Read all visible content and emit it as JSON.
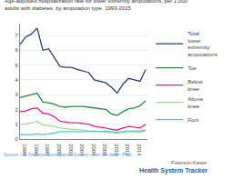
{
  "chart_data": {
    "type": "line",
    "title": "Age-adjusted hospitalization rate for lower extremity amputations, per 1,000\nadults with diabetes, by amputation type, 1993-2015",
    "x": [
      1993,
      1994,
      1995,
      1996,
      1997,
      1998,
      1999,
      2000,
      2001,
      2002,
      2003,
      2004,
      2005,
      2006,
      2007,
      2008,
      2009,
      2010,
      2011,
      2012,
      2013,
      2014,
      2015
    ],
    "series": [
      {
        "name": "Total\nlower\nextremity\namputations",
        "color": "#2d3d7c",
        "values": [
          6.4,
          6.9,
          7.1,
          7.5,
          6.0,
          6.1,
          5.5,
          4.9,
          4.85,
          4.85,
          4.7,
          4.6,
          4.5,
          4.0,
          3.9,
          3.8,
          3.5,
          3.1,
          3.7,
          4.1,
          4.0,
          3.9,
          4.7
        ]
      },
      {
        "name": "Toe",
        "color": "#2e8b4a",
        "values": [
          2.8,
          2.9,
          3.0,
          3.1,
          2.5,
          2.45,
          2.35,
          2.2,
          2.15,
          2.2,
          2.2,
          2.2,
          2.15,
          2.1,
          2.05,
          2.0,
          1.7,
          1.6,
          1.85,
          2.05,
          2.1,
          2.25,
          2.6
        ]
      },
      {
        "name": "Below\nknee",
        "color": "#e91e8c",
        "values": [
          1.85,
          1.9,
          2.05,
          2.1,
          1.75,
          1.7,
          1.5,
          1.2,
          1.15,
          1.1,
          1.1,
          1.05,
          1.0,
          0.85,
          0.8,
          0.75,
          0.65,
          0.6,
          0.75,
          0.85,
          0.8,
          0.75,
          1.0
        ]
      },
      {
        "name": "Above\nknee",
        "color": "#a8d898",
        "values": [
          1.0,
          1.0,
          1.1,
          1.2,
          0.95,
          0.9,
          0.85,
          0.75,
          0.7,
          0.65,
          0.65,
          0.6,
          0.55,
          0.5,
          0.5,
          0.45,
          0.4,
          0.38,
          0.45,
          0.5,
          0.48,
          0.45,
          0.55
        ]
      },
      {
        "name": "Foot",
        "color": "#5bc8c8",
        "values": [
          0.3,
          0.3,
          0.3,
          0.35,
          0.3,
          0.35,
          0.4,
          0.5,
          0.5,
          0.5,
          0.5,
          0.5,
          0.5,
          0.55,
          0.5,
          0.55,
          0.5,
          0.45,
          0.5,
          0.55,
          0.55,
          0.55,
          0.6
        ]
      }
    ],
    "xlim": [
      1993,
      2015.3
    ],
    "ylim": [
      0,
      7.8
    ],
    "xticks": [
      1994,
      1996,
      1998,
      2000,
      2002,
      2004,
      2006,
      2008,
      2010,
      2012,
      2014
    ],
    "yticks": [
      0,
      1,
      2,
      3,
      4,
      5,
      6,
      7
    ],
    "grid": "y",
    "legend": "right",
    "annotations": [
      "Source: US Diabetes Surveillance System • Get the data • PNG",
      "Peterson-Kaiser",
      "Health System Tracker"
    ]
  }
}
